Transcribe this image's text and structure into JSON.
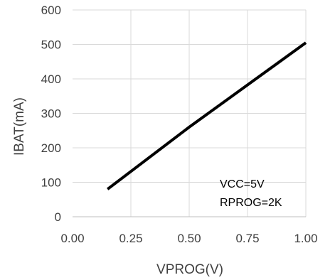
{
  "chart_data": {
    "type": "line",
    "title": "",
    "xlabel": "VPROG(V)",
    "ylabel": "IBAT(mA)",
    "xlim": [
      0,
      1
    ],
    "ylim": [
      0,
      600
    ],
    "x_ticks": [
      "0.00",
      "0.25",
      "0.50",
      "0.75",
      "1.00"
    ],
    "y_ticks": [
      "0",
      "100",
      "200",
      "300",
      "400",
      "500",
      "600"
    ],
    "x_tick_values": [
      0,
      0.25,
      0.5,
      0.75,
      1.0
    ],
    "y_tick_values": [
      0,
      100,
      200,
      300,
      400,
      500,
      600
    ],
    "grid": true,
    "series": [
      {
        "color": "#000000",
        "x": [
          0.15,
          0.5,
          1.0
        ],
        "y": [
          80,
          260,
          505
        ]
      }
    ],
    "annotations": [
      "VCC=5V",
      "RPROG=2K"
    ]
  }
}
